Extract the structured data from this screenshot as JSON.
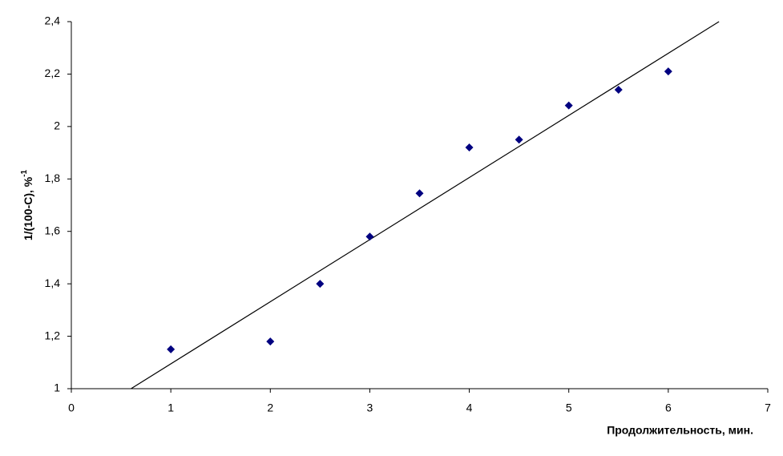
{
  "chart_data": {
    "type": "scatter",
    "x_label": "Продолжительность, мин.",
    "y_label": "1/(100-C), %",
    "y_label_sup": "-1",
    "x": [
      1,
      2,
      2.5,
      3,
      3.5,
      4,
      4.5,
      5,
      5.5,
      6
    ],
    "series": [
      {
        "color": "#000080",
        "values": [
          1.15,
          1.18,
          1.4,
          1.58,
          1.745,
          1.92,
          1.95,
          2.08,
          2.14,
          2.21
        ]
      }
    ],
    "trendline": {
      "x": [
        0.6,
        6.51
      ],
      "y": [
        1,
        2.4
      ],
      "color": "#000000"
    },
    "xlim": [
      0,
      7
    ],
    "xticks": [
      0,
      1,
      2,
      3,
      4,
      5,
      6,
      7
    ],
    "ylim": [
      1,
      2.4
    ],
    "yticks": [
      1,
      {
        "value": 1.2,
        "label": "1,2"
      },
      {
        "value": 1.4,
        "label": "1,4"
      },
      {
        "value": 1.6,
        "label": "1,6"
      },
      {
        "value": 1.8,
        "label": "1,8"
      },
      2,
      {
        "value": 2.2,
        "label": "2,2"
      },
      {
        "value": 2.4,
        "label": "2,4"
      }
    ],
    "grid": false
  }
}
